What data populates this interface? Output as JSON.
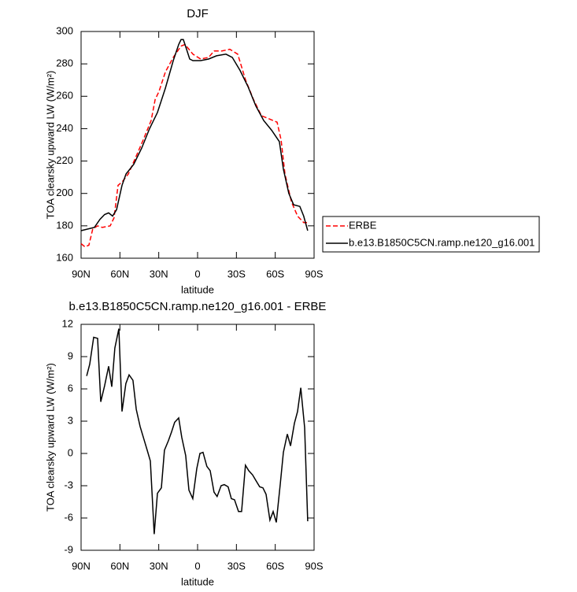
{
  "chart_data": [
    {
      "type": "line",
      "title": "DJF",
      "xlabel": "latitude",
      "ylabel": "TOA clearsky upward LW (W/m²)",
      "xlim": [
        90,
        -90
      ],
      "xticks": [
        {
          "value": 90,
          "label": "90N"
        },
        {
          "value": 60,
          "label": "60N"
        },
        {
          "value": 30,
          "label": "30N"
        },
        0,
        {
          "value": -30,
          "label": "30S"
        },
        {
          "value": -60,
          "label": "60S"
        },
        {
          "value": -90,
          "label": "90S"
        }
      ],
      "ylim": [
        160,
        300
      ],
      "yticks": [
        160,
        180,
        200,
        220,
        240,
        260,
        280,
        300
      ],
      "series": [
        {
          "name": "ERBE",
          "color": "#ff0000",
          "dashed": true,
          "x": [
            90,
            87,
            84,
            81,
            77.2,
            73.6,
            67.5,
            64.5,
            61.4,
            58.4,
            53.5,
            48,
            42,
            35.9,
            32.8,
            29.8,
            24.9,
            18.8,
            12.8,
            9.7,
            3.6,
            -2.4,
            -8.5,
            -12.8,
            -18.8,
            -24.9,
            -31,
            -37.1,
            -43.2,
            -49.3,
            -55.4,
            -61.4,
            -64.5,
            -67.5,
            -72.4,
            -77.2,
            -82,
            -84.5
          ],
          "values": [
            169,
            167,
            168,
            178,
            180,
            179,
            180,
            185,
            205,
            207,
            212,
            222,
            233,
            245,
            258,
            263,
            275,
            284,
            291,
            292,
            286,
            283,
            284,
            288,
            288,
            289,
            286,
            270,
            258,
            248,
            246,
            244,
            233,
            212,
            195,
            186,
            182,
            182
          ]
        },
        {
          "name": "b.e13.B1850C5CN.ramp.ne120_g16.001",
          "color": "#000000",
          "dashed": false,
          "x": [
            90,
            79.7,
            75.4,
            71.8,
            68.7,
            65.7,
            62.6,
            58.4,
            55.3,
            49.3,
            43.2,
            37.1,
            31,
            24.9,
            18.8,
            14.6,
            12.8,
            11,
            8.5,
            6.1,
            3.6,
            -2.4,
            -8.5,
            -14.6,
            -21.9,
            -26.8,
            -32.8,
            -38.9,
            -45,
            -51.1,
            -57.2,
            -63.2,
            -66.3,
            -70.5,
            -74.2,
            -79,
            -82,
            -85.1
          ],
          "values": [
            177,
            179,
            184,
            187,
            188,
            186,
            190,
            205,
            212,
            218,
            228,
            240,
            250,
            265,
            282,
            292,
            295,
            295,
            289,
            283,
            282,
            282,
            283,
            285,
            286,
            284,
            276,
            266,
            254,
            245,
            239,
            232,
            215,
            200,
            193,
            192,
            186,
            177
          ]
        }
      ]
    },
    {
      "type": "line",
      "title": "b.e13.B1850C5CN.ramp.ne120_g16.001 - ERBE",
      "xlabel": "latitude",
      "ylabel": "TOA clearsky upward LW (W/m²)",
      "xlim": [
        90,
        -90
      ],
      "xticks": [
        {
          "value": 90,
          "label": "90N"
        },
        {
          "value": 60,
          "label": "60N"
        },
        {
          "value": 30,
          "label": "30N"
        },
        0,
        {
          "value": -30,
          "label": "30S"
        },
        {
          "value": -60,
          "label": "60S"
        },
        {
          "value": -90,
          "label": "90S"
        }
      ],
      "ylim": [
        -9,
        12
      ],
      "yticks": [
        -9,
        -6,
        -3,
        0,
        3,
        6,
        9,
        12
      ],
      "series": [
        {
          "color": "#000000",
          "dashed": false,
          "x": [
            85.7,
            83.3,
            80.3,
            77.2,
            74.8,
            71.8,
            68.7,
            66.3,
            63.9,
            60.8,
            58.4,
            55.4,
            52.9,
            49.9,
            47.4,
            44.4,
            41.4,
            38.9,
            36.5,
            33.5,
            31,
            28,
            25.6,
            22.5,
            20.1,
            17.7,
            14.6,
            12.2,
            9.2,
            6.7,
            3.7,
            0.6,
            -1.8,
            -4.2,
            -7.2,
            -9.7,
            -12.7,
            -15.1,
            -18.2,
            -20.6,
            -23.6,
            -26.1,
            -28.5,
            -31.6,
            -34,
            -37,
            -39.5,
            -42.5,
            -45,
            -48,
            -50.5,
            -52.9,
            -55.9,
            -58.4,
            -60.8,
            -63.9,
            -66.3,
            -69.3,
            -71.8,
            -74.8,
            -77.2,
            -79.7,
            -82.7,
            -85.1
          ],
          "values": [
            7.2,
            8.3,
            10.8,
            10.7,
            4.8,
            6.3,
            8.1,
            6.2,
            9.8,
            11.6,
            3.9,
            6.5,
            7.3,
            6.8,
            4.1,
            2.5,
            1.3,
            0.3,
            -0.7,
            -7.5,
            -3.7,
            -3.2,
            0.3,
            1.2,
            2,
            2.9,
            3.3,
            1.5,
            -0.2,
            -3.4,
            -4.2,
            -1.4,
            0,
            0.1,
            -1.2,
            -1.6,
            -3.6,
            -4,
            -3,
            -2.9,
            -3.1,
            -4.2,
            -4.3,
            -5.4,
            -5.4,
            -1.1,
            -1.6,
            -2,
            -2.5,
            -3.1,
            -3.2,
            -3.8,
            -6.2,
            -5.4,
            -6.4,
            -2.8,
            0.1,
            1.8,
            0.7,
            2.8,
            3.9,
            6.1,
            2.4,
            -6.3
          ]
        }
      ]
    }
  ]
}
